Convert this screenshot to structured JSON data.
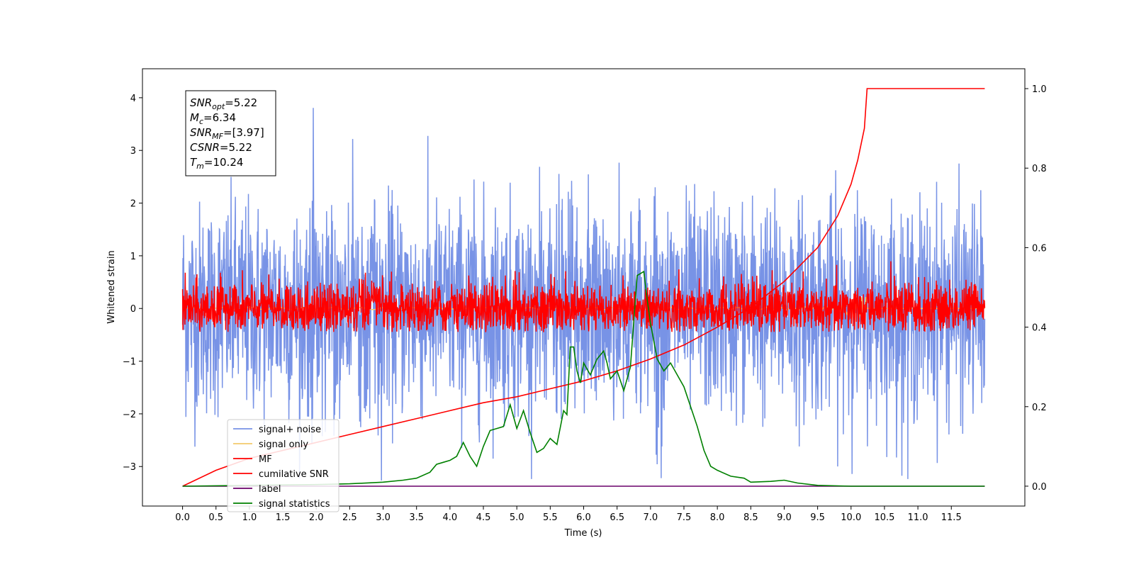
{
  "chart_data": {
    "type": "line",
    "xlabel": "Time (s)",
    "ylabel": "Whitened strain",
    "xlim": [
      -0.6,
      12.6
    ],
    "ylim": [
      -3.75,
      4.55
    ],
    "y2lim": [
      -0.05,
      1.05
    ],
    "x_ticks": [
      "0.0",
      "0.5",
      "1.0",
      "1.5",
      "2.0",
      "2.5",
      "3.0",
      "3.5",
      "4.0",
      "4.5",
      "5.0",
      "5.5",
      "6.0",
      "6.5",
      "7.0",
      "7.5",
      "8.0",
      "8.5",
      "9.0",
      "9.5",
      "10.0",
      "10.5",
      "11.0",
      "11.5"
    ],
    "y_ticks": [
      "−3",
      "−2",
      "−1",
      "0",
      "1",
      "2",
      "3",
      "4"
    ],
    "y2_ticks": [
      "0.0",
      "0.2",
      "0.4",
      "0.6",
      "0.8",
      "1.0"
    ],
    "grid": false,
    "legend_position": "lower-left",
    "annotation": {
      "lines": [
        {
          "sym": "SNR",
          "sub": "opt",
          "value": "=5.22"
        },
        {
          "sym": "M",
          "sub": "c",
          "value": "=6.34"
        },
        {
          "sym": "SNR",
          "sub": "MF",
          "value": "=[3.97]"
        },
        {
          "sym": "CSNR",
          "sub": "",
          "value": "=5.22"
        },
        {
          "sym": "T",
          "sub": "m",
          "value": "=10.24"
        }
      ]
    },
    "series": [
      {
        "name": "signal+ noise",
        "color": "#7893e6",
        "axis": "left",
        "style": "noise",
        "amplitude_std": 1.0,
        "range": [
          -3.3,
          4.15
        ]
      },
      {
        "name": "signal only",
        "color": "#f2c96b",
        "axis": "left",
        "style": "chirp",
        "peak_time": 10.24
      },
      {
        "name": "MF",
        "color": "#ff0000",
        "axis": "left",
        "style": "noise",
        "amplitude_std": 0.25,
        "range": [
          -0.45,
          1.0
        ]
      },
      {
        "name": "cumilative SNR",
        "color": "#ff0000",
        "axis": "right",
        "x": [
          0.0,
          0.5,
          1.0,
          1.5,
          2.0,
          2.5,
          3.0,
          3.5,
          4.0,
          4.5,
          5.0,
          5.5,
          6.0,
          6.5,
          7.0,
          7.5,
          8.0,
          8.5,
          9.0,
          9.5,
          9.8,
          10.0,
          10.1,
          10.2,
          10.24,
          12.0
        ],
        "y": [
          0.0,
          0.04,
          0.07,
          0.09,
          0.11,
          0.13,
          0.15,
          0.17,
          0.19,
          0.21,
          0.225,
          0.245,
          0.265,
          0.29,
          0.32,
          0.355,
          0.4,
          0.45,
          0.515,
          0.6,
          0.68,
          0.76,
          0.82,
          0.9,
          1.0,
          1.0
        ]
      },
      {
        "name": "label",
        "color": "#6a006a",
        "axis": "right",
        "x": [
          0.0,
          12.0
        ],
        "y": [
          0.0,
          0.0
        ]
      },
      {
        "name": "signal statistics",
        "color": "#008000",
        "axis": "right",
        "x": [
          0.0,
          1.0,
          2.0,
          2.5,
          3.0,
          3.3,
          3.5,
          3.7,
          3.8,
          3.9,
          4.0,
          4.1,
          4.2,
          4.3,
          4.4,
          4.5,
          4.6,
          4.7,
          4.8,
          4.9,
          5.0,
          5.1,
          5.2,
          5.3,
          5.4,
          5.5,
          5.6,
          5.7,
          5.75,
          5.8,
          5.85,
          5.9,
          5.95,
          6.0,
          6.1,
          6.2,
          6.3,
          6.35,
          6.4,
          6.5,
          6.6,
          6.7,
          6.8,
          6.85,
          6.9,
          6.95,
          7.0,
          7.1,
          7.2,
          7.3,
          7.4,
          7.5,
          7.6,
          7.7,
          7.8,
          7.9,
          8.0,
          8.2,
          8.4,
          8.5,
          8.8,
          9.0,
          9.2,
          9.5,
          10.0,
          12.0
        ],
        "y": [
          0.0,
          0.002,
          0.004,
          0.006,
          0.01,
          0.015,
          0.02,
          0.035,
          0.055,
          0.06,
          0.065,
          0.075,
          0.11,
          0.075,
          0.05,
          0.1,
          0.14,
          0.145,
          0.15,
          0.205,
          0.145,
          0.19,
          0.135,
          0.085,
          0.095,
          0.12,
          0.105,
          0.19,
          0.18,
          0.35,
          0.35,
          0.29,
          0.26,
          0.31,
          0.28,
          0.32,
          0.34,
          0.31,
          0.27,
          0.29,
          0.24,
          0.3,
          0.53,
          0.535,
          0.54,
          0.47,
          0.41,
          0.32,
          0.29,
          0.31,
          0.28,
          0.25,
          0.2,
          0.15,
          0.09,
          0.05,
          0.04,
          0.025,
          0.02,
          0.01,
          0.012,
          0.015,
          0.008,
          0.002,
          0.0,
          0.0
        ]
      }
    ]
  }
}
